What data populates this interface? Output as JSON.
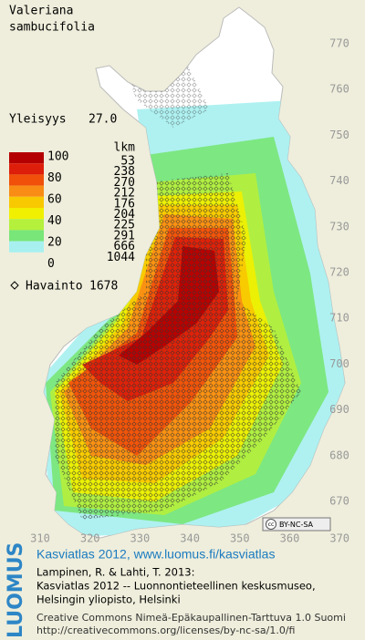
{
  "species": {
    "genus": "Valeriana",
    "epithet": "sambucifolia"
  },
  "frequency": {
    "label": "Yleisyys",
    "value": "27.0"
  },
  "legend": {
    "scale_labels": [
      100,
      80,
      60,
      40,
      20,
      0
    ],
    "count_header": "lkm",
    "classes": [
      {
        "color": "#b40000",
        "count": 53
      },
      {
        "color": "#dc1e0a",
        "count": 238
      },
      {
        "color": "#f0500a",
        "count": 270
      },
      {
        "color": "#f88c14",
        "count": 212
      },
      {
        "color": "#f8c800",
        "count": 176
      },
      {
        "color": "#f0f000",
        "count": 204
      },
      {
        "color": "#b4f03c",
        "count": 225
      },
      {
        "color": "#78e678",
        "count": 291
      },
      {
        "color": "#a8f0f0",
        "count": 666
      },
      {
        "color": "#ffffff",
        "count": 1044
      }
    ]
  },
  "observations": {
    "label": "Havainto",
    "count": 1678
  },
  "grid": {
    "y_labels": [
      770,
      760,
      750,
      740,
      730,
      720,
      710,
      700,
      690,
      680,
      670
    ],
    "x_labels": [
      310,
      320,
      330,
      340,
      350,
      360,
      370
    ]
  },
  "license_badge": {
    "cc": "cc",
    "terms": "BY-NC-SA"
  },
  "logo": "LUOMUS",
  "footer": {
    "link": "Kasviatlas 2012, www.luomus.fi/kasviatlas",
    "citation": [
      "Lampinen, R. & Lahti, T. 2013:",
      "Kasviatlas 2012 -- Luonnontieteellinen keskusmuseo,",
      "Helsingin yliopisto, Helsinki"
    ],
    "license": "Creative Commons Nimeä-Epäkaupallinen-Tarttuva 1.0 Suomi",
    "license_url": "http://creativecommons.org/licenses/by-nc-sa/1.0/fi"
  }
}
